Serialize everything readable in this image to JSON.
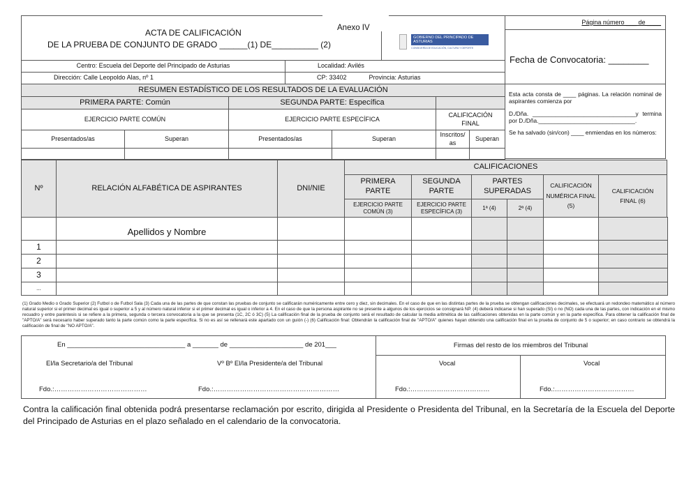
{
  "header": {
    "annex": "Anexo IV",
    "title_line1": "ACTA DE CALIFICACIÓN",
    "title_line2": "DE LA PRUEBA DE CONJUNTO DE GRADO ______(1) DE__________ (2)",
    "logo_text": "GOBIERNO DEL PRINCIPADO DE ASTURIAS",
    "logo_subtext": "CONSEJERÍA DE EDUCACIÓN, CULTURA Y DEPORTE",
    "page_number": "Página número ___ de ____",
    "convocatoria_date": "Fecha de Convocatoria: ________"
  },
  "center": {
    "centro": "Centro: Escuela del Deporte del Principado de Asturias",
    "localidad": "Localidad: Avilés",
    "direccion": "Dirección:  Calle Leopoldo Alas, nº 1",
    "cp": "CP: 33402",
    "provincia": "Provincia: Asturias"
  },
  "summary": {
    "title": "RESUMEN ESTADÍSTICO DE LOS RESULTADOS DE LA EVALUACIÓN",
    "part1": "PRIMERA PARTE: Común",
    "part2": "SEGUNDA PARTE: Específica",
    "ex1": "EJERCICIO PARTE COMÚN",
    "ex2": "EJERCICIO PARTE ESPECÍFICA",
    "final": "CALIFICACIÓN FINAL",
    "presentados": "Presentados/as",
    "superan": "Superan",
    "inscritos": "Inscritos/ as"
  },
  "notes_box": {
    "p1": "Esta acta consta de ____ páginas. La relación nominal de aspirantes comienza por",
    "p2": "D./Dña.      ________________________________y termina por D./Dña.______________________________.",
    "p3": "Se ha salvado (sin/con) ____ enmiendas en los números:"
  },
  "table": {
    "col_no": "Nº",
    "col_name": "RELACIÓN ALFABÉTICA DE ASPIRANTES",
    "col_dni": "DNI/NIE",
    "calificaciones": "CALIFICACIONES",
    "primera": "PRIMERA PARTE",
    "segunda": "SEGUNDA PARTE",
    "partes": "PARTES SUPERADAS",
    "num_final": "CALIFICACIÓN NUMÉRICA FINAL (5)",
    "final": "CALIFICACIÓN FINAL (6)",
    "ej_comun": "EJERCICIO PARTE COMÚN (3)",
    "ej_esp": "EJERCICIO PARTE ESPECÍFICA (3)",
    "p1": "1ª (4)",
    "p2": "2ª (4)",
    "apellidos": "Apellidos y Nombre",
    "rows": [
      "1",
      "2",
      "3",
      "..."
    ]
  },
  "footnotes": "(1) Grado Medio o Grado Superior    (2) Futbol o de Futbol Sala   (3) Cada una de las partes de que constan las pruebas de conjunto se calificarán numéricamente entre cero y diez, sin decimales. En el caso de que en las distintas partes de la prueba se obtengan calificaciones decimales, se efectuará un redondeo matemático al número natural superior si el primer decimal es igual o superior a 5 y al número natural inferior si el primer decimal es igual o inferior a 4. En el caso de que la persona aspirante no se presente a algunos de los ejercicios se consignará NP. (4) deberá indicarse si han superado (SI) o no (NO) cada una de las partes, con indicación en el mismo recuadro y entre paréntesis si se refiere a la primera, segunda o tercera convocatoria a la que se presenta (1C, 2C ó 3C) (5) La calificación final de la prueba de conjunto será el resultado de calcular la media aritmética de las calificaciones obtenidas en la parte común y en la parte específica. Para obtener la calificación final de \"APTO/A\" será necesario haber superado tanto la parte común como la parte específica. Si no es así se rellenará este apartado con un guión (-) (6) Calificación final: Obtendrán la calificación final de \"APTO/A\" quienes hayan obtenido una calificación final en la prueba de conjunto de 5 o superior; en caso contrario se obtendrá la calificación de final de \"NO APTO/A\".",
  "signatures": {
    "place_date": "En ________________________________ a _______ de ____________________ de 201___",
    "firmas": "Firmas del resto de los miembros del Tribunal",
    "secretario": "El/la Secretario/a del Tribunal",
    "presidente": "Vº Bº El/la Presidente/a del Tribunal",
    "vocal": "Vocal",
    "fdo_short": "Fdo.:……………………………………",
    "fdo_long": "Fdo.:…………………………………………………",
    "fdo_vocal": "Fdo.:………………………………"
  },
  "appeal": "Contra la calificación final obtenida podrá presentarse reclamación por escrito, dirigida al Presidente o Presidenta del Tribunal, en la Secretaría de la Escuela del Deporte del Principado de Asturias en el plazo señalado en el calendario de la convocatoria."
}
